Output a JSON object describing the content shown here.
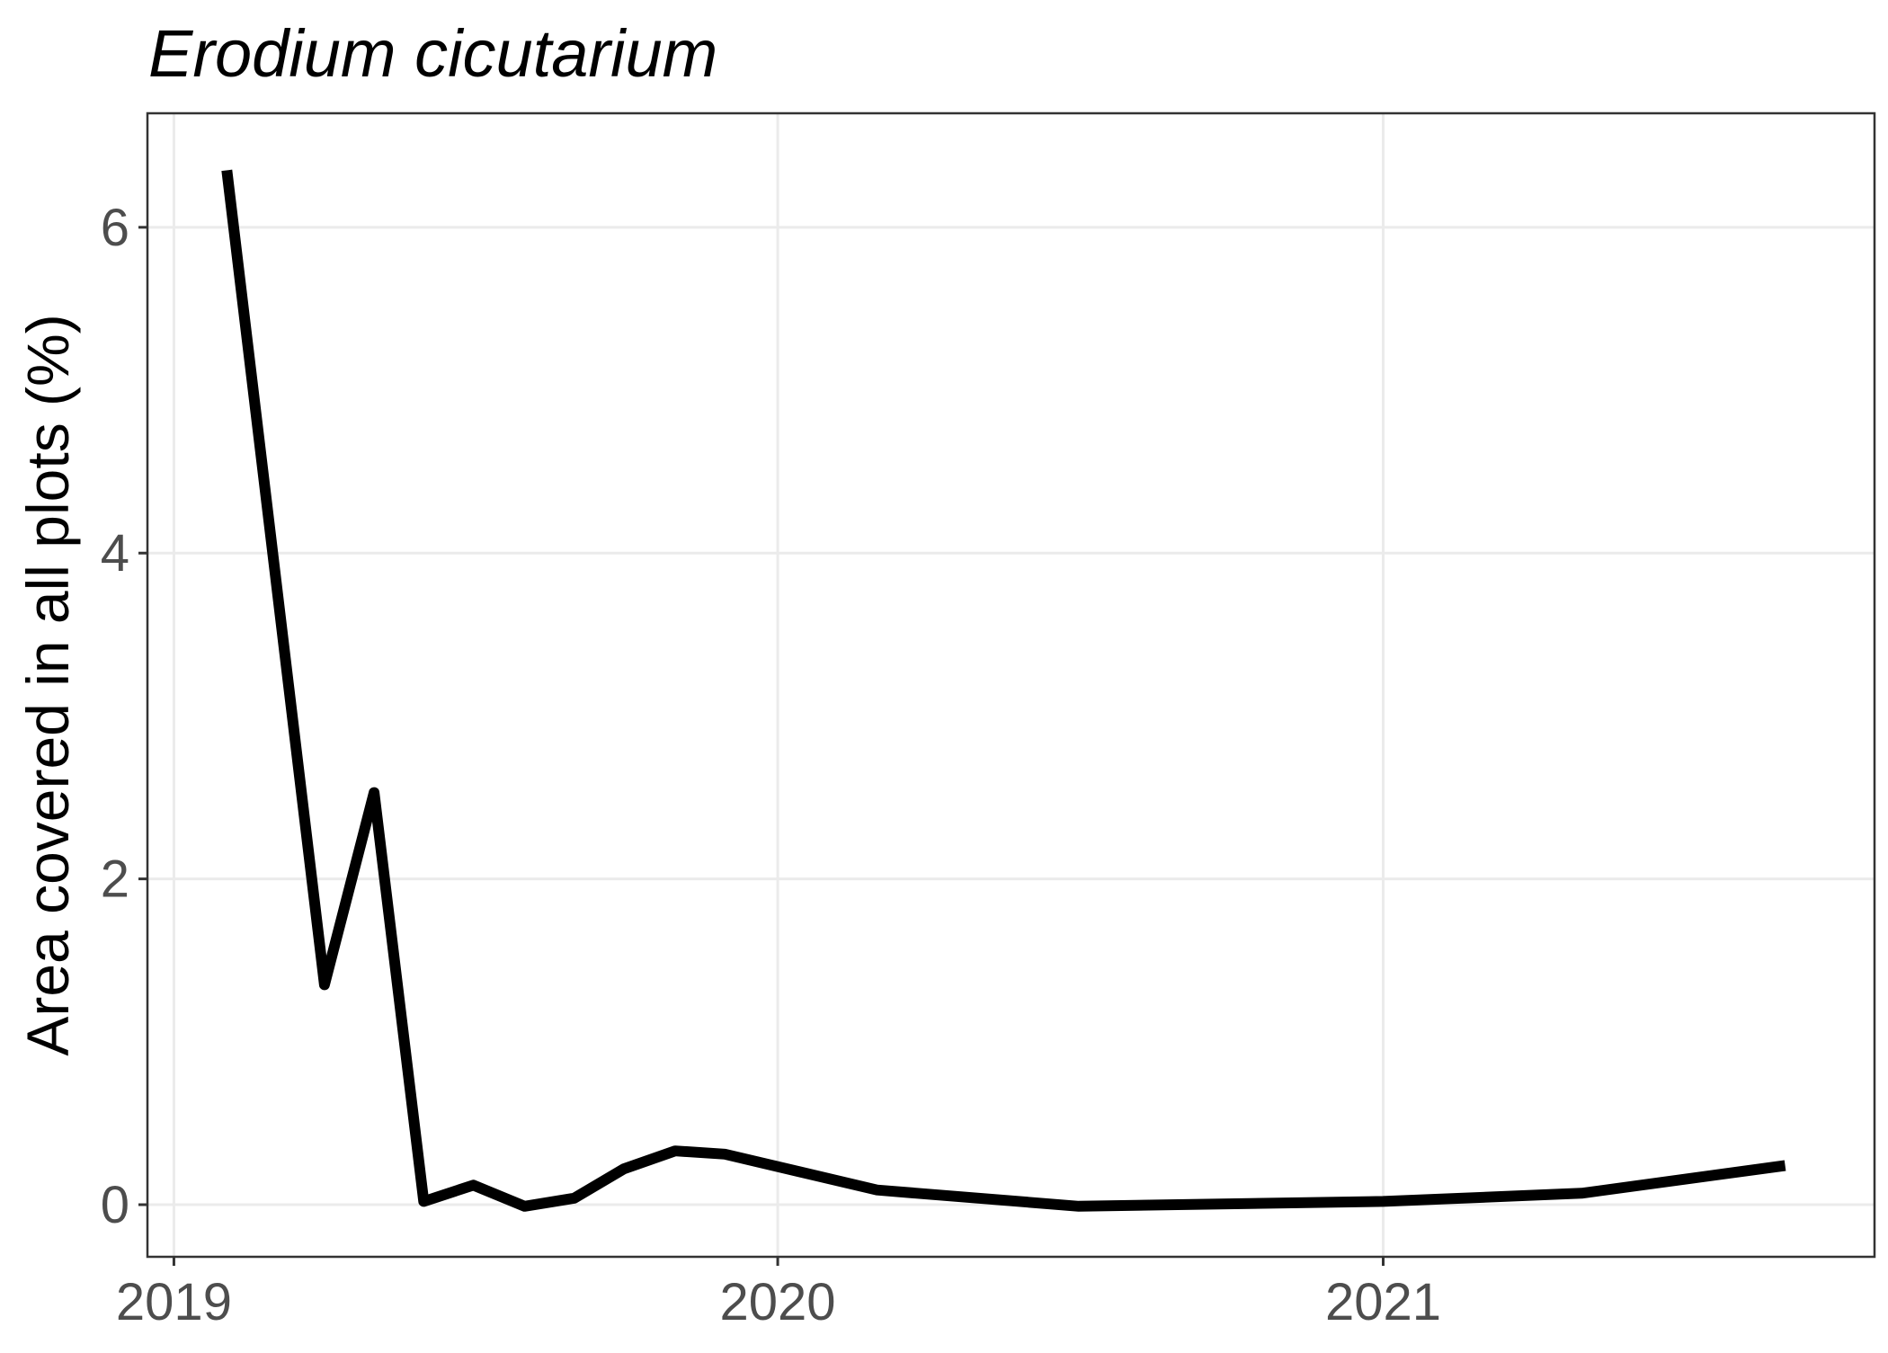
{
  "chart_data": {
    "type": "line",
    "title": "Erodium cicutarium",
    "xlabel": "",
    "ylabel": "Area covered in all plots (%)",
    "xlim": [
      "2018-12-16",
      "2021-10-25"
    ],
    "ylim": [
      -0.32,
      6.7
    ],
    "x_ticks": [
      "2019-01-01",
      "2020-01-01",
      "2021-01-01"
    ],
    "x_tick_labels": [
      "2019",
      "2020",
      "2021"
    ],
    "y_ticks": [
      0,
      2,
      4,
      6
    ],
    "y_tick_labels": [
      "0",
      "2",
      "4",
      "6"
    ],
    "grid": true,
    "legend": "none",
    "series": [
      {
        "color": "#000000",
        "points": [
          {
            "x": "2019-02-02",
            "y": 6.35
          },
          {
            "x": "2019-04-02",
            "y": 1.35
          },
          {
            "x": "2019-05-02",
            "y": 2.53
          },
          {
            "x": "2019-06-01",
            "y": 0.02
          },
          {
            "x": "2019-07-01",
            "y": 0.12
          },
          {
            "x": "2019-08-01",
            "y": -0.01
          },
          {
            "x": "2019-08-31",
            "y": 0.04
          },
          {
            "x": "2019-09-30",
            "y": 0.22
          },
          {
            "x": "2019-10-31",
            "y": 0.33
          },
          {
            "x": "2019-11-30",
            "y": 0.31
          },
          {
            "x": "2020-03-01",
            "y": 0.09
          },
          {
            "x": "2020-07-01",
            "y": -0.01
          },
          {
            "x": "2021-01-01",
            "y": 0.02
          },
          {
            "x": "2021-05-01",
            "y": 0.07
          },
          {
            "x": "2021-09-01",
            "y": 0.24
          }
        ]
      }
    ]
  }
}
